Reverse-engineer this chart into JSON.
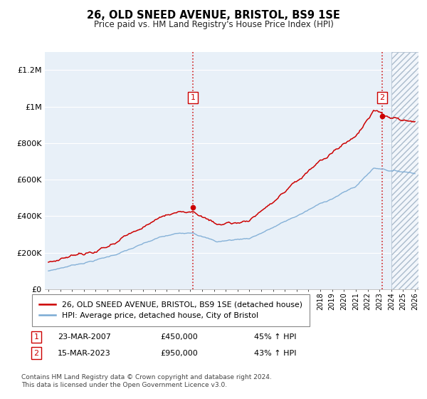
{
  "title": "26, OLD SNEED AVENUE, BRISTOL, BS9 1SE",
  "subtitle": "Price paid vs. HM Land Registry's House Price Index (HPI)",
  "legend_line1": "26, OLD SNEED AVENUE, BRISTOL, BS9 1SE (detached house)",
  "legend_line2": "HPI: Average price, detached house, City of Bristol",
  "annotation1_date": "23-MAR-2007",
  "annotation1_price": "£450,000",
  "annotation1_hpi": "45% ↑ HPI",
  "annotation2_date": "15-MAR-2023",
  "annotation2_price": "£950,000",
  "annotation2_hpi": "43% ↑ HPI",
  "footnote": "Contains HM Land Registry data © Crown copyright and database right 2024.\nThis data is licensed under the Open Government Licence v3.0.",
  "hpi_color": "#7aaad4",
  "price_color": "#cc0000",
  "background_color": "#e8f0f8",
  "grid_color": "#ffffff",
  "annotation_vline_color": "#cc0000",
  "ylim": [
    0,
    1300000
  ],
  "sale1_x": 2007.22,
  "sale1_y": 450000,
  "sale2_x": 2023.21,
  "sale2_y": 950000,
  "xmin": 1994.7,
  "xmax": 2026.3,
  "hatch_start": 2024.0
}
